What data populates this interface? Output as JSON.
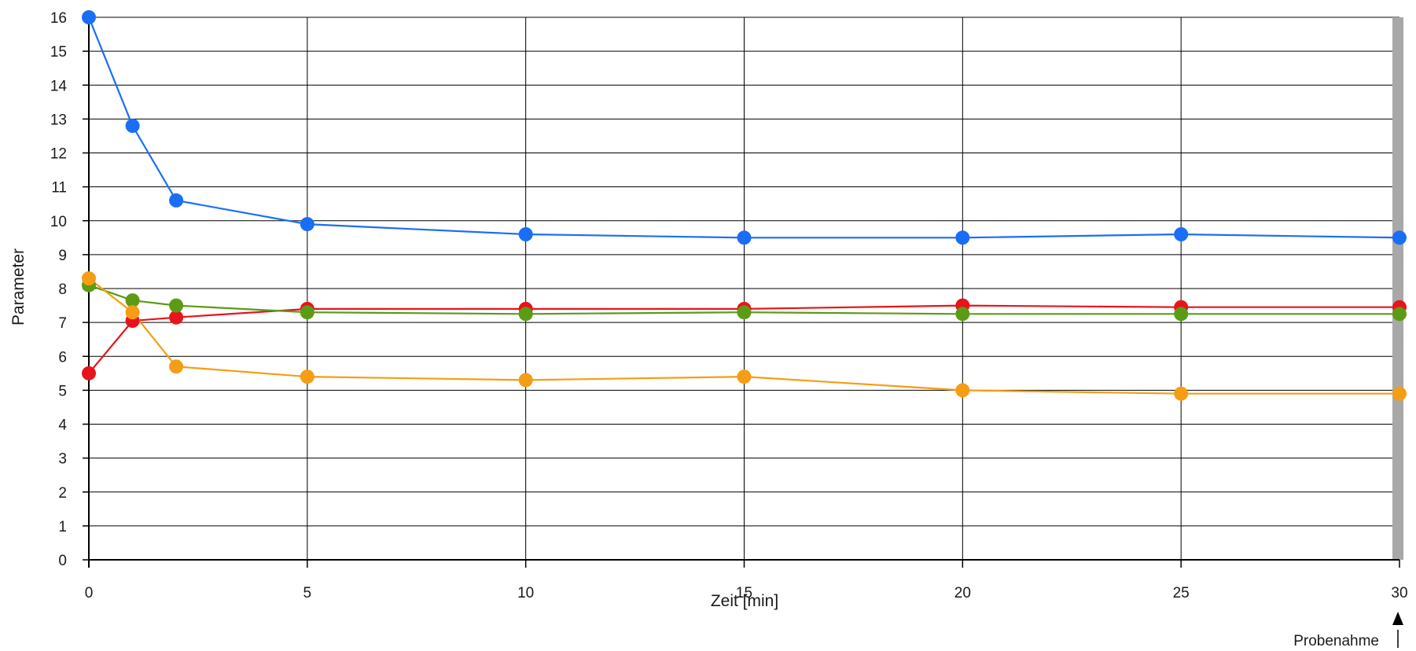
{
  "chart_data": {
    "type": "line",
    "xlabel": "Zeit [min]",
    "ylabel": "Parameter",
    "x": [
      0,
      1,
      2,
      5,
      10,
      15,
      20,
      25,
      30
    ],
    "xticks": [
      0,
      5,
      10,
      15,
      20,
      25,
      30
    ],
    "xlim": [
      0,
      30
    ],
    "ylim": [
      0,
      16
    ],
    "yticks": [
      0,
      1,
      2,
      3,
      4,
      5,
      6,
      7,
      8,
      9,
      10,
      11,
      12,
      13,
      14,
      15,
      16
    ],
    "grid": true,
    "sampling_marker": {
      "x": 30,
      "label": "Probenahme"
    },
    "series": [
      {
        "color": "#1a6ef5",
        "values": [
          16.0,
          12.8,
          10.6,
          9.9,
          9.6,
          9.5,
          9.5,
          9.6,
          9.5
        ]
      },
      {
        "color": "#e8141b",
        "values": [
          5.5,
          7.05,
          7.15,
          7.4,
          7.4,
          7.4,
          7.5,
          7.45,
          7.45
        ]
      },
      {
        "color": "#5c9b16",
        "values": [
          8.1,
          7.65,
          7.5,
          7.3,
          7.25,
          7.3,
          7.25,
          7.25,
          7.25
        ]
      },
      {
        "color": "#f59d14",
        "values": [
          8.3,
          7.3,
          5.7,
          5.4,
          5.3,
          5.4,
          5.0,
          4.9,
          4.9
        ]
      }
    ]
  }
}
